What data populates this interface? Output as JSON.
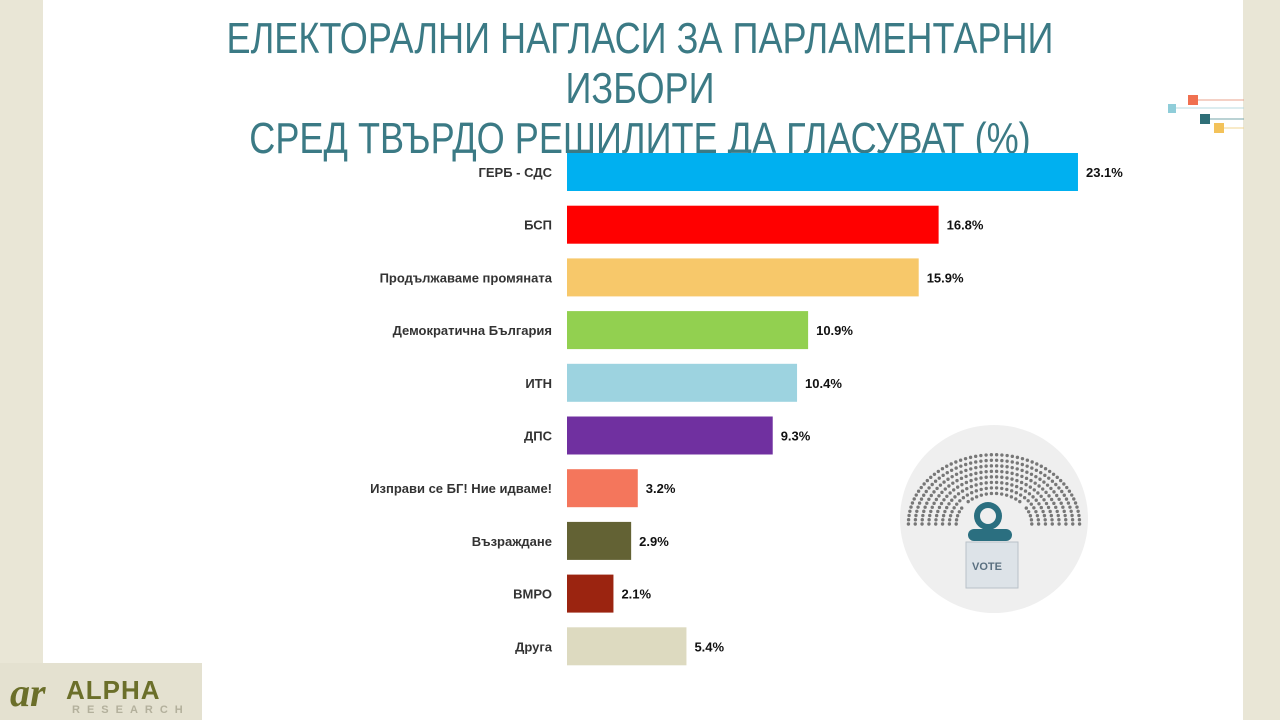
{
  "title": {
    "line1": "ЕЛЕКТОРАЛНИ НАГЛАСИ ЗА ПАРЛАМЕНТАРНИ ИЗБОРИ",
    "line2": "СРЕД ТВЪРДО РЕШИЛИТЕ ДА ГЛАСУВАТ (%)"
  },
  "logo": {
    "name": "ALPHA",
    "sub": "RESEARCH"
  },
  "vote_icon_text": "VOTE",
  "chart_data": {
    "type": "bar",
    "orientation": "horizontal",
    "title": "ЕЛЕКТОРАЛНИ НАГЛАСИ ЗА ПАРЛАМЕНТАРНИ ИЗБОРИ СРЕД ТВЪРДО РЕШИЛИТЕ ДА ГЛАСУВАТ (%)",
    "categories": [
      "ГЕРБ - СДС",
      "БСП",
      "Продължаваме промяната",
      "Демократична България",
      "ИТН",
      "ДПС",
      "Изправи се БГ! Ние идваме!",
      "Възраждане",
      "ВМРО",
      "Друга"
    ],
    "values": [
      23.1,
      16.8,
      15.9,
      10.9,
      10.4,
      9.3,
      3.2,
      2.9,
      2.1,
      5.4
    ],
    "labels": [
      "23.1%",
      "16.8%",
      "15.9%",
      "10.9%",
      "10.4%",
      "9.3%",
      "3.2%",
      "2.9%",
      "2.1%",
      "5.4%"
    ],
    "colors": [
      "#00b0f0",
      "#ff0000",
      "#f7c86a",
      "#92d050",
      "#9dd3e0",
      "#7030a0",
      "#f4765c",
      "#636234",
      "#9b2410",
      "#dddac0"
    ],
    "grid": false,
    "legend": "none"
  }
}
